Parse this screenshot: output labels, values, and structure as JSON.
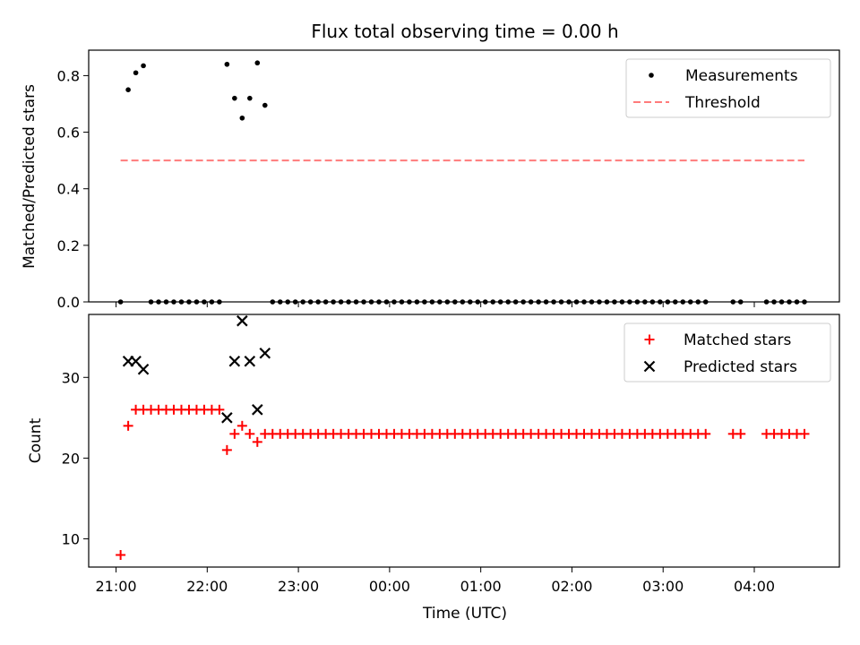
{
  "title": "Flux total observing time = 0.00 h",
  "xlabel": "Time (UTC)",
  "x_tick_labels": [
    "21:00",
    "22:00",
    "23:00",
    "00:00",
    "01:00",
    "02:00",
    "03:00",
    "04:00"
  ],
  "chart_data": [
    {
      "type": "scatter",
      "ylabel": "Matched/Predicted stars",
      "ylim": [
        0,
        0.89
      ],
      "yticks": [
        0.0,
        0.2,
        0.4,
        0.6,
        0.8
      ],
      "ytick_labels": [
        "0.0",
        "0.2",
        "0.4",
        "0.6",
        "0.8"
      ],
      "xlim": [
        "20:42",
        "04:56"
      ],
      "legend_position": "upper right",
      "series": [
        {
          "name": "Measurements",
          "kind": "points",
          "color": "#000000",
          "marker": "dot",
          "points": [
            [
              "21:03",
              0.0
            ],
            [
              "21:08",
              0.75
            ],
            [
              "21:13",
              0.81
            ],
            [
              "21:18",
              0.835
            ],
            [
              "21:23",
              0.0
            ],
            [
              "21:28",
              0.0
            ],
            [
              "21:33",
              0.0
            ],
            [
              "21:38",
              0.0
            ],
            [
              "21:43",
              0.0
            ],
            [
              "21:48",
              0.0
            ],
            [
              "21:53",
              0.0
            ],
            [
              "21:58",
              0.0
            ],
            [
              "22:03",
              0.0
            ],
            [
              "22:08",
              0.0
            ],
            [
              "22:13",
              0.84
            ],
            [
              "22:18",
              0.72
            ],
            [
              "22:23",
              0.65
            ],
            [
              "22:28",
              0.72
            ],
            [
              "22:33",
              0.845
            ],
            [
              "22:38",
              0.695
            ],
            [
              "22:43",
              0.0
            ],
            [
              "22:48",
              0.0
            ],
            [
              "22:53",
              0.0
            ],
            [
              "22:58",
              0.0
            ],
            [
              "23:03",
              0.0
            ],
            [
              "23:08",
              0.0
            ],
            [
              "23:13",
              0.0
            ],
            [
              "23:18",
              0.0
            ],
            [
              "23:23",
              0.0
            ],
            [
              "23:28",
              0.0
            ],
            [
              "23:33",
              0.0
            ],
            [
              "23:38",
              0.0
            ],
            [
              "23:43",
              0.0
            ],
            [
              "23:48",
              0.0
            ],
            [
              "23:53",
              0.0
            ],
            [
              "23:58",
              0.0
            ],
            [
              "00:03",
              0.0
            ],
            [
              "00:08",
              0.0
            ],
            [
              "00:13",
              0.0
            ],
            [
              "00:18",
              0.0
            ],
            [
              "00:23",
              0.0
            ],
            [
              "00:28",
              0.0
            ],
            [
              "00:33",
              0.0
            ],
            [
              "00:38",
              0.0
            ],
            [
              "00:43",
              0.0
            ],
            [
              "00:48",
              0.0
            ],
            [
              "00:53",
              0.0
            ],
            [
              "00:58",
              0.0
            ],
            [
              "01:03",
              0.0
            ],
            [
              "01:08",
              0.0
            ],
            [
              "01:13",
              0.0
            ],
            [
              "01:18",
              0.0
            ],
            [
              "01:23",
              0.0
            ],
            [
              "01:28",
              0.0
            ],
            [
              "01:33",
              0.0
            ],
            [
              "01:38",
              0.0
            ],
            [
              "01:43",
              0.0
            ],
            [
              "01:48",
              0.0
            ],
            [
              "01:53",
              0.0
            ],
            [
              "01:58",
              0.0
            ],
            [
              "02:03",
              0.0
            ],
            [
              "02:08",
              0.0
            ],
            [
              "02:13",
              0.0
            ],
            [
              "02:18",
              0.0
            ],
            [
              "02:23",
              0.0
            ],
            [
              "02:28",
              0.0
            ],
            [
              "02:33",
              0.0
            ],
            [
              "02:38",
              0.0
            ],
            [
              "02:43",
              0.0
            ],
            [
              "02:48",
              0.0
            ],
            [
              "02:53",
              0.0
            ],
            [
              "02:58",
              0.0
            ],
            [
              "03:03",
              0.0
            ],
            [
              "03:08",
              0.0
            ],
            [
              "03:13",
              0.0
            ],
            [
              "03:18",
              0.0
            ],
            [
              "03:23",
              0.0
            ],
            [
              "03:28",
              0.0
            ],
            [
              "03:46",
              0.0
            ],
            [
              "03:51",
              0.0
            ],
            [
              "04:08",
              0.0
            ],
            [
              "04:13",
              0.0
            ],
            [
              "04:18",
              0.0
            ],
            [
              "04:23",
              0.0
            ],
            [
              "04:28",
              0.0
            ],
            [
              "04:33",
              0.0
            ]
          ]
        },
        {
          "name": "Threshold",
          "kind": "line",
          "color": "#ff7b7b",
          "dash": "dashed",
          "points": [
            [
              "21:03",
              0.5
            ],
            [
              "04:33",
              0.5
            ]
          ]
        }
      ]
    },
    {
      "type": "scatter",
      "ylabel": "Count",
      "ylim": [
        6.5,
        37.8
      ],
      "yticks": [
        10,
        20,
        30
      ],
      "ytick_labels": [
        "10",
        "20",
        "30"
      ],
      "xlim": [
        "20:42",
        "04:56"
      ],
      "legend_position": "upper right",
      "series": [
        {
          "name": "Matched stars",
          "kind": "points",
          "color": "#ff0000",
          "marker": "plus",
          "points": [
            [
              "21:03",
              8
            ],
            [
              "21:08",
              24
            ],
            [
              "21:13",
              26
            ],
            [
              "21:18",
              26
            ],
            [
              "21:23",
              26
            ],
            [
              "21:28",
              26
            ],
            [
              "21:33",
              26
            ],
            [
              "21:38",
              26
            ],
            [
              "21:43",
              26
            ],
            [
              "21:48",
              26
            ],
            [
              "21:53",
              26
            ],
            [
              "21:58",
              26
            ],
            [
              "22:03",
              26
            ],
            [
              "22:08",
              26
            ],
            [
              "22:13",
              21
            ],
            [
              "22:18",
              23
            ],
            [
              "22:23",
              24
            ],
            [
              "22:28",
              23
            ],
            [
              "22:33",
              22
            ],
            [
              "22:38",
              23
            ],
            [
              "22:43",
              23
            ],
            [
              "22:48",
              23
            ],
            [
              "22:53",
              23
            ],
            [
              "22:58",
              23
            ],
            [
              "23:03",
              23
            ],
            [
              "23:08",
              23
            ],
            [
              "23:13",
              23
            ],
            [
              "23:18",
              23
            ],
            [
              "23:23",
              23
            ],
            [
              "23:28",
              23
            ],
            [
              "23:33",
              23
            ],
            [
              "23:38",
              23
            ],
            [
              "23:43",
              23
            ],
            [
              "23:48",
              23
            ],
            [
              "23:53",
              23
            ],
            [
              "23:58",
              23
            ],
            [
              "00:03",
              23
            ],
            [
              "00:08",
              23
            ],
            [
              "00:13",
              23
            ],
            [
              "00:18",
              23
            ],
            [
              "00:23",
              23
            ],
            [
              "00:28",
              23
            ],
            [
              "00:33",
              23
            ],
            [
              "00:38",
              23
            ],
            [
              "00:43",
              23
            ],
            [
              "00:48",
              23
            ],
            [
              "00:53",
              23
            ],
            [
              "00:58",
              23
            ],
            [
              "01:03",
              23
            ],
            [
              "01:08",
              23
            ],
            [
              "01:13",
              23
            ],
            [
              "01:18",
              23
            ],
            [
              "01:23",
              23
            ],
            [
              "01:28",
              23
            ],
            [
              "01:33",
              23
            ],
            [
              "01:38",
              23
            ],
            [
              "01:43",
              23
            ],
            [
              "01:48",
              23
            ],
            [
              "01:53",
              23
            ],
            [
              "01:58",
              23
            ],
            [
              "02:03",
              23
            ],
            [
              "02:08",
              23
            ],
            [
              "02:13",
              23
            ],
            [
              "02:18",
              23
            ],
            [
              "02:23",
              23
            ],
            [
              "02:28",
              23
            ],
            [
              "02:33",
              23
            ],
            [
              "02:38",
              23
            ],
            [
              "02:43",
              23
            ],
            [
              "02:48",
              23
            ],
            [
              "02:53",
              23
            ],
            [
              "02:58",
              23
            ],
            [
              "03:03",
              23
            ],
            [
              "03:08",
              23
            ],
            [
              "03:13",
              23
            ],
            [
              "03:18",
              23
            ],
            [
              "03:23",
              23
            ],
            [
              "03:28",
              23
            ],
            [
              "03:46",
              23
            ],
            [
              "03:51",
              23
            ],
            [
              "04:08",
              23
            ],
            [
              "04:13",
              23
            ],
            [
              "04:18",
              23
            ],
            [
              "04:23",
              23
            ],
            [
              "04:28",
              23
            ],
            [
              "04:33",
              23
            ]
          ]
        },
        {
          "name": "Predicted stars",
          "kind": "points",
          "color": "#000000",
          "marker": "x",
          "points": [
            [
              "21:08",
              32
            ],
            [
              "21:13",
              32
            ],
            [
              "21:18",
              31
            ],
            [
              "22:13",
              25
            ],
            [
              "22:18",
              32
            ],
            [
              "22:23",
              37
            ],
            [
              "22:28",
              32
            ],
            [
              "22:33",
              26
            ],
            [
              "22:38",
              33
            ]
          ]
        }
      ]
    }
  ]
}
